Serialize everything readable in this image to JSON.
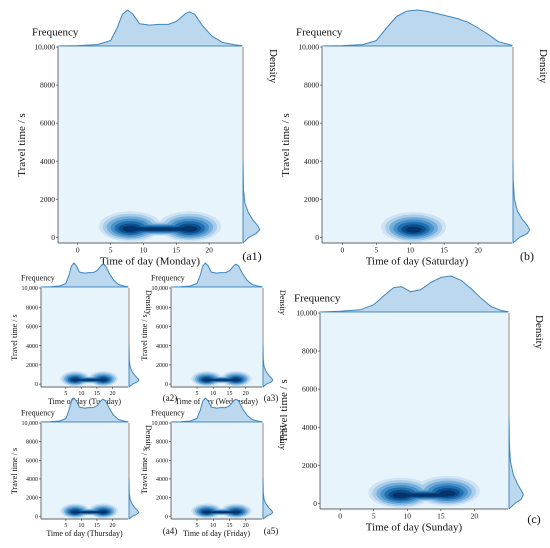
{
  "labels": {
    "frequency": "Frequency",
    "density": "Density",
    "ylabel": "Travel time / s"
  },
  "chart_data": [
    {
      "panel": "(a1)",
      "day_label": "Time of day (Monday)",
      "type": "kde2d-joint",
      "xlabel": "Time of day (Monday)",
      "ylabel": "Travel time / s",
      "xlim": [
        -3,
        25
      ],
      "ylim": [
        -300,
        10000
      ],
      "xticks": [
        "0",
        "5",
        "10",
        "15",
        "20"
      ],
      "yticks": [
        "0",
        "2000",
        "4000",
        "6000",
        "8000",
        "10,000"
      ],
      "peaks": [
        {
          "x": 8,
          "y": 420
        },
        {
          "x": 17,
          "y": 420
        }
      ],
      "marginal_x": [
        [
          -3,
          0
        ],
        [
          0,
          0.01
        ],
        [
          3,
          0.04
        ],
        [
          5,
          0.15
        ],
        [
          6,
          0.5
        ],
        [
          6.8,
          0.88
        ],
        [
          7.6,
          1.0
        ],
        [
          8.4,
          0.88
        ],
        [
          9.4,
          0.62
        ],
        [
          11,
          0.58
        ],
        [
          12.4,
          0.6
        ],
        [
          13.8,
          0.6
        ],
        [
          15,
          0.68
        ],
        [
          16.4,
          0.9
        ],
        [
          17,
          0.95
        ],
        [
          17.8,
          0.88
        ],
        [
          19,
          0.56
        ],
        [
          20.4,
          0.28
        ],
        [
          22,
          0.1
        ],
        [
          24,
          0.03
        ],
        [
          25,
          0.01
        ]
      ],
      "marginal_y": [
        [
          -300,
          0
        ],
        [
          0,
          0.25
        ],
        [
          200,
          0.55
        ],
        [
          400,
          0.7
        ],
        [
          600,
          0.62
        ],
        [
          900,
          0.42
        ],
        [
          1300,
          0.22
        ],
        [
          1800,
          0.08
        ],
        [
          2500,
          0.02
        ],
        [
          4000,
          0
        ]
      ]
    },
    {
      "panel": "(b)",
      "day_label": "Time of day (Saturday)",
      "type": "kde2d-joint",
      "xlabel": "Time of day (Saturday)",
      "ylabel": "Travel time / s",
      "xlim": [
        -3,
        25
      ],
      "ylim": [
        -300,
        10000
      ],
      "xticks": [
        "0",
        "5",
        "10",
        "15",
        "20"
      ],
      "yticks": [
        "0",
        "2000",
        "4000",
        "6000",
        "8000",
        "10,000"
      ],
      "peaks": [
        {
          "x": 10.5,
          "y": 380
        }
      ],
      "marginal_x": [
        [
          -3,
          0
        ],
        [
          0,
          0.01
        ],
        [
          3,
          0.04
        ],
        [
          5,
          0.15
        ],
        [
          6.5,
          0.5
        ],
        [
          8,
          0.82
        ],
        [
          9.5,
          0.97
        ],
        [
          11,
          1.0
        ],
        [
          12.5,
          0.96
        ],
        [
          14,
          0.9
        ],
        [
          15.5,
          0.83
        ],
        [
          17,
          0.76
        ],
        [
          18.5,
          0.66
        ],
        [
          20,
          0.5
        ],
        [
          21.5,
          0.32
        ],
        [
          23,
          0.12
        ],
        [
          25,
          0.02
        ]
      ],
      "marginal_y": [
        [
          -300,
          0
        ],
        [
          0,
          0.28
        ],
        [
          200,
          0.6
        ],
        [
          400,
          0.7
        ],
        [
          650,
          0.58
        ],
        [
          1000,
          0.36
        ],
        [
          1400,
          0.18
        ],
        [
          2000,
          0.06
        ],
        [
          3000,
          0.01
        ],
        [
          4000,
          0
        ]
      ]
    },
    {
      "panel": "(a2)",
      "day_label": "Time of day (Tuesday)",
      "type": "kde2d-joint",
      "xlabel": "Time of day (Tuesday)",
      "ylabel": "Travel time / s",
      "xlim": [
        -3,
        25
      ],
      "ylim": [
        -300,
        10000
      ],
      "xticks": [
        "5",
        "10",
        "15",
        "20"
      ],
      "yticks": [
        "0",
        "2000",
        "4000",
        "6000",
        "8000",
        "10,000"
      ],
      "peaks": [
        {
          "x": 8,
          "y": 420
        },
        {
          "x": 17,
          "y": 420
        }
      ],
      "marginal_x": [
        [
          -3,
          0
        ],
        [
          0,
          0.01
        ],
        [
          3,
          0.04
        ],
        [
          5,
          0.15
        ],
        [
          6,
          0.5
        ],
        [
          6.8,
          0.88
        ],
        [
          7.6,
          1.0
        ],
        [
          8.4,
          0.88
        ],
        [
          9.4,
          0.62
        ],
        [
          11,
          0.58
        ],
        [
          12.4,
          0.6
        ],
        [
          13.8,
          0.6
        ],
        [
          15,
          0.68
        ],
        [
          16.4,
          0.9
        ],
        [
          17,
          0.95
        ],
        [
          17.8,
          0.88
        ],
        [
          19,
          0.56
        ],
        [
          20.4,
          0.28
        ],
        [
          22,
          0.1
        ],
        [
          24,
          0.03
        ],
        [
          25,
          0.01
        ]
      ],
      "marginal_y": [
        [
          -300,
          0
        ],
        [
          0,
          0.25
        ],
        [
          200,
          0.55
        ],
        [
          400,
          0.7
        ],
        [
          600,
          0.62
        ],
        [
          900,
          0.42
        ],
        [
          1300,
          0.22
        ],
        [
          1800,
          0.08
        ],
        [
          2500,
          0.02
        ],
        [
          4000,
          0
        ]
      ]
    },
    {
      "panel": "(a3)",
      "day_label": "Time of day (Wednesday)",
      "type": "kde2d-joint",
      "xlabel": "Time of day (Wednesday)",
      "ylabel": "Travel time / s",
      "xlim": [
        -3,
        25
      ],
      "ylim": [
        -300,
        10000
      ],
      "xticks": [
        "5",
        "10",
        "15",
        "20"
      ],
      "yticks": [
        "0",
        "2000",
        "4000",
        "6000",
        "8000",
        "10,000"
      ],
      "peaks": [
        {
          "x": 8,
          "y": 420
        },
        {
          "x": 17,
          "y": 420
        }
      ],
      "marginal_x": [
        [
          -3,
          0
        ],
        [
          0,
          0.01
        ],
        [
          3,
          0.04
        ],
        [
          5,
          0.15
        ],
        [
          6,
          0.5
        ],
        [
          6.8,
          0.88
        ],
        [
          7.6,
          1.0
        ],
        [
          8.4,
          0.88
        ],
        [
          9.4,
          0.62
        ],
        [
          11,
          0.58
        ],
        [
          12.4,
          0.6
        ],
        [
          13.8,
          0.6
        ],
        [
          15,
          0.68
        ],
        [
          16.4,
          0.9
        ],
        [
          17,
          0.95
        ],
        [
          17.8,
          0.88
        ],
        [
          19,
          0.56
        ],
        [
          20.4,
          0.28
        ],
        [
          22,
          0.1
        ],
        [
          24,
          0.03
        ],
        [
          25,
          0.01
        ]
      ],
      "marginal_y": [
        [
          -300,
          0
        ],
        [
          0,
          0.25
        ],
        [
          200,
          0.55
        ],
        [
          400,
          0.7
        ],
        [
          600,
          0.62
        ],
        [
          900,
          0.42
        ],
        [
          1300,
          0.22
        ],
        [
          1800,
          0.08
        ],
        [
          2500,
          0.02
        ],
        [
          4000,
          0
        ]
      ]
    },
    {
      "panel": "(c)",
      "day_label": "Time of day (Sunday)",
      "type": "kde2d-joint",
      "xlabel": "Time of day (Sunday)",
      "ylabel": "Travel time / s",
      "xlim": [
        -3,
        25
      ],
      "ylim": [
        -300,
        10000
      ],
      "xticks": [
        "0",
        "5",
        "10",
        "15",
        "20"
      ],
      "yticks": [
        "0",
        "2000",
        "4000",
        "6000",
        "8000",
        "10,000"
      ],
      "peaks": [
        {
          "x": 9,
          "y": 400
        },
        {
          "x": 16,
          "y": 500
        }
      ],
      "marginal_x": [
        [
          -3,
          0
        ],
        [
          0,
          0.02
        ],
        [
          3,
          0.06
        ],
        [
          5,
          0.2
        ],
        [
          6.5,
          0.45
        ],
        [
          8,
          0.68
        ],
        [
          9.2,
          0.7
        ],
        [
          10.5,
          0.56
        ],
        [
          12,
          0.62
        ],
        [
          13.5,
          0.82
        ],
        [
          15,
          0.96
        ],
        [
          16.5,
          1.0
        ],
        [
          18,
          0.88
        ],
        [
          19.5,
          0.65
        ],
        [
          21,
          0.38
        ],
        [
          22.5,
          0.15
        ],
        [
          24,
          0.04
        ],
        [
          25,
          0.01
        ]
      ],
      "marginal_y": [
        [
          -300,
          0
        ],
        [
          0,
          0.25
        ],
        [
          200,
          0.5
        ],
        [
          450,
          0.6
        ],
        [
          700,
          0.5
        ],
        [
          1000,
          0.36
        ],
        [
          1500,
          0.18
        ],
        [
          2200,
          0.06
        ],
        [
          3000,
          0.02
        ],
        [
          4500,
          0
        ]
      ]
    },
    {
      "panel": "(a4)",
      "day_label": "Time of day (Thursday)",
      "type": "kde2d-joint",
      "xlabel": "Time of day (Thursday)",
      "ylabel": "Travel time / s",
      "xlim": [
        -3,
        25
      ],
      "ylim": [
        -300,
        10000
      ],
      "xticks": [
        "5",
        "10",
        "15",
        "20"
      ],
      "yticks": [
        "0",
        "2000",
        "4000",
        "6000",
        "8000",
        "10,000"
      ],
      "peaks": [
        {
          "x": 8,
          "y": 420
        },
        {
          "x": 17,
          "y": 420
        }
      ],
      "marginal_x": [
        [
          -3,
          0
        ],
        [
          0,
          0.01
        ],
        [
          3,
          0.04
        ],
        [
          5,
          0.15
        ],
        [
          6,
          0.5
        ],
        [
          6.8,
          0.88
        ],
        [
          7.6,
          1.0
        ],
        [
          8.4,
          0.88
        ],
        [
          9.4,
          0.62
        ],
        [
          11,
          0.58
        ],
        [
          12.4,
          0.6
        ],
        [
          13.8,
          0.6
        ],
        [
          15,
          0.68
        ],
        [
          16.4,
          0.9
        ],
        [
          17,
          0.95
        ],
        [
          17.8,
          0.88
        ],
        [
          19,
          0.56
        ],
        [
          20.4,
          0.28
        ],
        [
          22,
          0.1
        ],
        [
          24,
          0.03
        ],
        [
          25,
          0.01
        ]
      ],
      "marginal_y": [
        [
          -300,
          0
        ],
        [
          0,
          0.25
        ],
        [
          200,
          0.55
        ],
        [
          400,
          0.7
        ],
        [
          600,
          0.62
        ],
        [
          900,
          0.42
        ],
        [
          1300,
          0.22
        ],
        [
          1800,
          0.08
        ],
        [
          2500,
          0.02
        ],
        [
          4000,
          0
        ]
      ]
    },
    {
      "panel": "(a5)",
      "day_label": "Time of day (Friday)",
      "type": "kde2d-joint",
      "xlabel": "Time of day (Friday)",
      "ylabel": "Travel time / s",
      "xlim": [
        -3,
        25
      ],
      "ylim": [
        -300,
        10000
      ],
      "xticks": [
        "5",
        "10",
        "15",
        "20"
      ],
      "yticks": [
        "0",
        "2000",
        "4000",
        "6000",
        "8000",
        "10,000"
      ],
      "peaks": [
        {
          "x": 8,
          "y": 420
        },
        {
          "x": 17,
          "y": 420
        }
      ],
      "marginal_x": [
        [
          -3,
          0
        ],
        [
          0,
          0.01
        ],
        [
          3,
          0.04
        ],
        [
          5,
          0.15
        ],
        [
          6,
          0.5
        ],
        [
          6.8,
          0.88
        ],
        [
          7.6,
          1.0
        ],
        [
          8.4,
          0.88
        ],
        [
          9.4,
          0.62
        ],
        [
          11,
          0.58
        ],
        [
          12.4,
          0.6
        ],
        [
          13.8,
          0.6
        ],
        [
          15,
          0.68
        ],
        [
          16.4,
          0.9
        ],
        [
          17,
          0.95
        ],
        [
          17.8,
          0.88
        ],
        [
          19,
          0.56
        ],
        [
          20.4,
          0.28
        ],
        [
          22,
          0.1
        ],
        [
          24,
          0.03
        ],
        [
          25,
          0.01
        ]
      ],
      "marginal_y": [
        [
          -300,
          0
        ],
        [
          0,
          0.25
        ],
        [
          200,
          0.55
        ],
        [
          400,
          0.7
        ],
        [
          600,
          0.62
        ],
        [
          900,
          0.42
        ],
        [
          1300,
          0.22
        ],
        [
          1800,
          0.08
        ],
        [
          2500,
          0.02
        ],
        [
          4000,
          0
        ]
      ]
    }
  ],
  "colors": {
    "background": "#e8f4fc",
    "marginal_fill": "#bcd8ee",
    "marginal_line": "#3e86bd",
    "kde_levels": [
      "#cfe3f4",
      "#a7cde9",
      "#74afdc",
      "#4790c8",
      "#1f6fb0",
      "#0b4e8c",
      "#06326a"
    ]
  }
}
